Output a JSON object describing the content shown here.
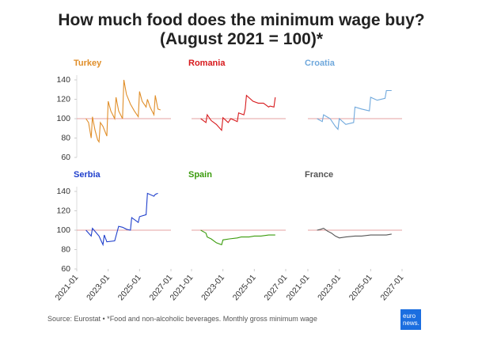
{
  "title": "How much food does the minimum wage buy? (August 2021 = 100)*",
  "source": "Source: Eurostat • *Food and non-alcoholic beverages. Monthly gross minimum wage",
  "logo": [
    "euro",
    "news."
  ],
  "chart_data": [
    {
      "type": "line",
      "title": "Turkey",
      "color": "#e08e29",
      "hline": 100,
      "ylim": [
        60,
        140
      ],
      "yticks": [
        60,
        80,
        100,
        120,
        140
      ],
      "xlim": [
        "2021-01",
        "2027-01"
      ],
      "x": [
        "2021-08",
        "2021-10",
        "2021-12",
        "2022-01",
        "2022-03",
        "2022-05",
        "2022-06",
        "2022-07",
        "2022-09",
        "2022-12",
        "2023-01",
        "2023-03",
        "2023-06",
        "2023-07",
        "2023-09",
        "2023-12",
        "2024-01",
        "2024-03",
        "2024-06",
        "2024-09",
        "2024-12",
        "2025-01",
        "2025-03",
        "2025-06",
        "2025-07",
        "2025-09",
        "2025-12",
        "2026-01",
        "2026-03",
        "2026-05"
      ],
      "values": [
        100,
        96,
        80,
        102,
        88,
        78,
        76,
        96,
        92,
        82,
        118,
        108,
        100,
        122,
        108,
        100,
        140,
        125,
        115,
        108,
        102,
        128,
        118,
        112,
        120,
        112,
        104,
        124,
        110,
        109
      ]
    },
    {
      "type": "line",
      "title": "Romania",
      "color": "#d7191c",
      "hline": 100,
      "ylim": [
        60,
        140
      ],
      "xlim": [
        "2021-01",
        "2027-01"
      ],
      "x": [
        "2021-08",
        "2021-12",
        "2022-01",
        "2022-04",
        "2022-08",
        "2022-12",
        "2023-01",
        "2023-05",
        "2023-07",
        "2023-12",
        "2024-01",
        "2024-05",
        "2024-06",
        "2024-07",
        "2024-12",
        "2025-04",
        "2025-08",
        "2025-12",
        "2026-01",
        "2026-04",
        "2026-05"
      ],
      "values": [
        100,
        96,
        104,
        98,
        94,
        88,
        101,
        96,
        100,
        97,
        106,
        104,
        110,
        124,
        118,
        116,
        116,
        112,
        113,
        112,
        122
      ]
    },
    {
      "type": "line",
      "title": "Croatia",
      "color": "#6fa8dc",
      "hline": 100,
      "ylim": [
        60,
        140
      ],
      "xlim": [
        "2021-01",
        "2027-01"
      ],
      "x": [
        "2021-08",
        "2021-12",
        "2022-01",
        "2022-06",
        "2022-10",
        "2022-12",
        "2023-01",
        "2023-06",
        "2023-12",
        "2024-01",
        "2024-06",
        "2024-12",
        "2025-01",
        "2025-06",
        "2025-12",
        "2026-01",
        "2026-05"
      ],
      "values": [
        100,
        97,
        104,
        100,
        92,
        89,
        100,
        94,
        96,
        112,
        110,
        108,
        122,
        119,
        121,
        129,
        129
      ]
    },
    {
      "type": "line",
      "title": "Serbia",
      "color": "#1f3fcc",
      "hline": 100,
      "ylim": [
        60,
        140
      ],
      "yticks": [
        60,
        80,
        100,
        120,
        140
      ],
      "xlim": [
        "2021-01",
        "2027-01"
      ],
      "xticks": [
        "2021-01",
        "2023-01",
        "2025-01",
        "2027-01"
      ],
      "x": [
        "2021-08",
        "2021-12",
        "2022-01",
        "2022-06",
        "2022-09",
        "2022-10",
        "2022-12",
        "2023-06",
        "2023-09",
        "2023-12",
        "2024-03",
        "2024-06",
        "2024-07",
        "2024-12",
        "2025-01",
        "2025-06",
        "2025-07",
        "2025-12",
        "2026-01",
        "2026-03"
      ],
      "values": [
        100,
        94,
        102,
        94,
        85,
        95,
        88,
        89,
        104,
        103,
        101,
        100,
        113,
        108,
        114,
        116,
        138,
        135,
        137,
        138
      ]
    },
    {
      "type": "line",
      "title": "Spain",
      "color": "#3a9b0c",
      "hline": 100,
      "ylim": [
        60,
        140
      ],
      "xlim": [
        "2021-01",
        "2027-01"
      ],
      "xticks": [
        "2021-01",
        "2023-01",
        "2025-01",
        "2027-01"
      ],
      "x": [
        "2021-08",
        "2021-12",
        "2022-01",
        "2022-04",
        "2022-08",
        "2022-12",
        "2023-01",
        "2023-06",
        "2023-12",
        "2024-03",
        "2024-09",
        "2025-01",
        "2025-06",
        "2025-12",
        "2026-05"
      ],
      "values": [
        100,
        97,
        93,
        91,
        87,
        85,
        90,
        91,
        92,
        93,
        93,
        94,
        94,
        95,
        95
      ]
    },
    {
      "type": "line",
      "title": "France",
      "color": "#555555",
      "hline": 100,
      "ylim": [
        60,
        140
      ],
      "xlim": [
        "2021-01",
        "2027-01"
      ],
      "xticks": [
        "2021-01",
        "2023-01",
        "2025-01",
        "2027-01"
      ],
      "x": [
        "2021-08",
        "2021-11",
        "2022-01",
        "2022-04",
        "2022-07",
        "2022-10",
        "2023-01",
        "2023-06",
        "2024-01",
        "2024-06",
        "2025-01",
        "2025-06",
        "2026-01",
        "2026-05"
      ],
      "values": [
        100,
        101,
        102,
        99,
        97,
        94,
        92,
        93,
        94,
        94,
        95,
        95,
        95,
        96
      ]
    }
  ]
}
